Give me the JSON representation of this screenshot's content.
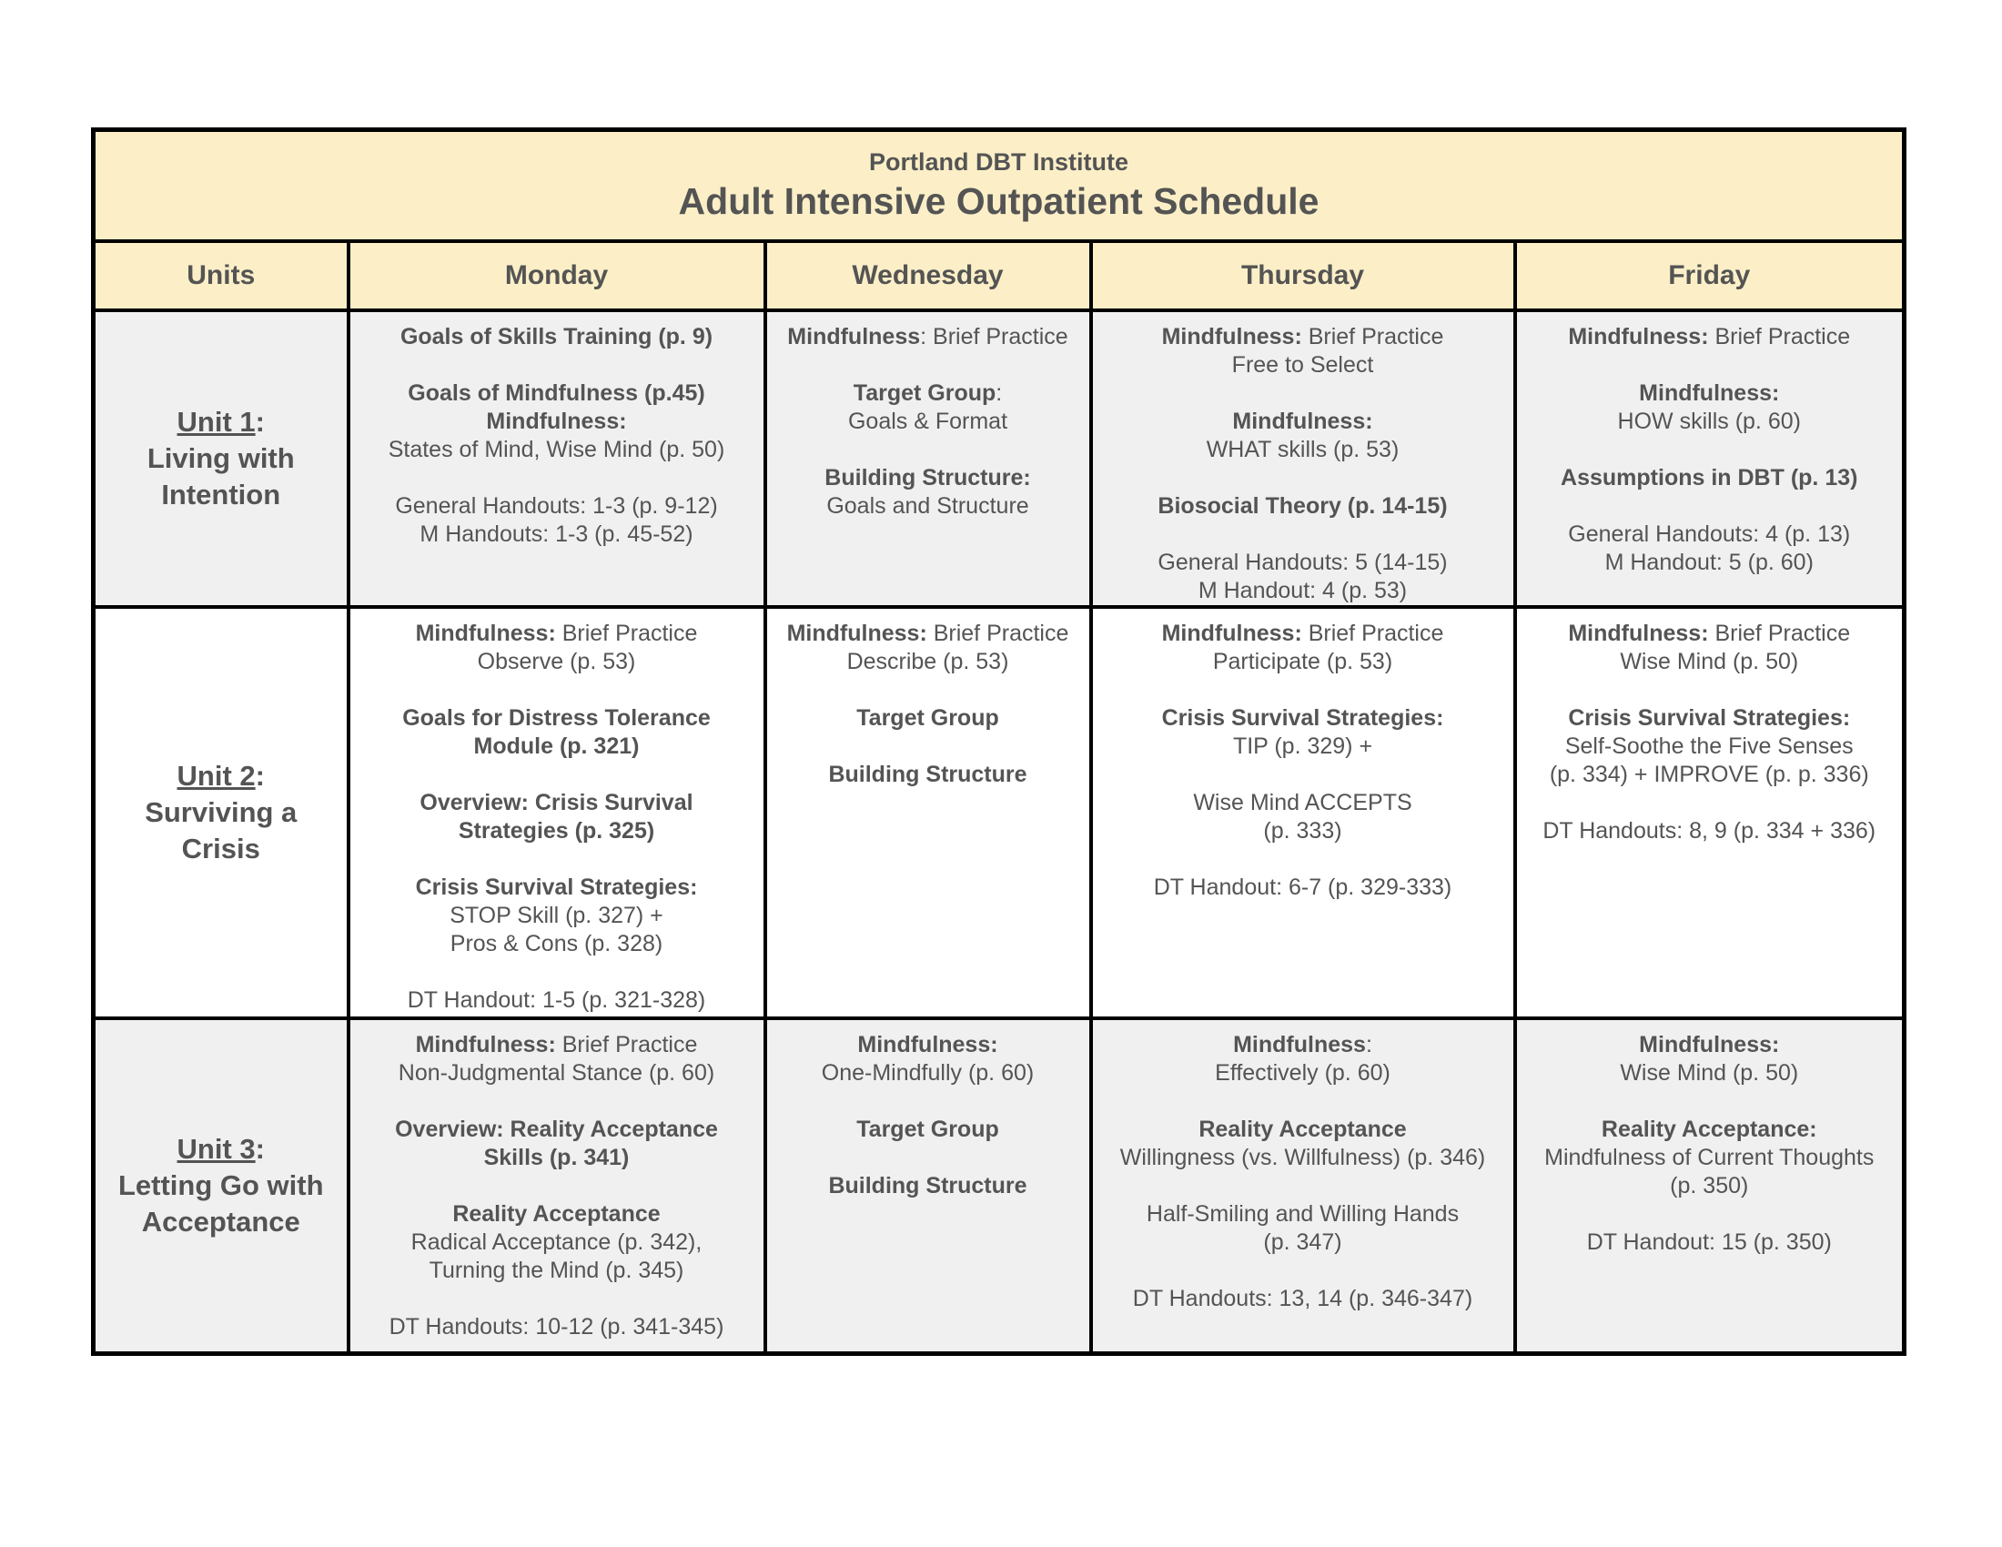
{
  "colors": {
    "header_bg": "#fcefc7",
    "shaded_row_bg": "#f0f0f0",
    "row_bg": "#ffffff",
    "border": "#000000",
    "text": "#545454"
  },
  "title": {
    "institute": "Portland DBT Institute",
    "schedule": "Adult Intensive Outpatient Schedule"
  },
  "columns": [
    "Units",
    "Monday",
    "Wednesday",
    "Thursday",
    "Friday"
  ],
  "rows": [
    {
      "unit": {
        "label": "Unit 1",
        "suffix": ":",
        "name": "Living with Intention",
        "name_lines": [
          "Living with",
          "Intention"
        ]
      },
      "days": [
        {
          "day": "Monday",
          "blocks": [
            [
              [
                {
                  "t": "Goals of Skills Training (p. 9)",
                  "b": true
                }
              ]
            ],
            [
              [
                {
                  "t": "Goals of Mindfulness (p.45)",
                  "b": true
                }
              ],
              [
                {
                  "t": "Mindfulness:",
                  "b": true
                }
              ],
              [
                {
                  "t": "States of Mind, Wise Mind (p. 50)",
                  "b": false
                }
              ]
            ],
            [
              [
                {
                  "t": "General Handouts: 1-3 (p. 9-12)",
                  "b": false
                }
              ],
              [
                {
                  "t": "M Handouts: 1-3 (p. 45-52)",
                  "b": false
                }
              ]
            ]
          ]
        },
        {
          "day": "Wednesday",
          "blocks": [
            [
              [
                {
                  "t": "Mindfulness",
                  "b": true
                },
                {
                  "t": ": Brief Practice",
                  "b": false
                }
              ]
            ],
            [
              [
                {
                  "t": "Target Group",
                  "b": true
                },
                {
                  "t": ":",
                  "b": false
                }
              ],
              [
                {
                  "t": "Goals & Format",
                  "b": false
                }
              ]
            ],
            [
              [
                {
                  "t": "Building Structure:",
                  "b": true
                }
              ],
              [
                {
                  "t": "Goals and Structure",
                  "b": false
                }
              ]
            ]
          ]
        },
        {
          "day": "Thursday",
          "blocks": [
            [
              [
                {
                  "t": "Mindfulness:",
                  "b": true
                },
                {
                  "t": " Brief Practice",
                  "b": false
                }
              ],
              [
                {
                  "t": "Free to Select",
                  "b": false
                }
              ]
            ],
            [
              [
                {
                  "t": "Mindfulness:",
                  "b": true
                }
              ],
              [
                {
                  "t": "WHAT skills (p. 53)",
                  "b": false
                }
              ]
            ],
            [
              [
                {
                  "t": "Biosocial Theory (p. 14-15)",
                  "b": true
                }
              ]
            ],
            [
              [
                {
                  "t": "General Handouts: 5 (14-15)",
                  "b": false
                }
              ],
              [
                {
                  "t": "M Handout: 4 (p. 53)",
                  "b": false
                }
              ]
            ]
          ]
        },
        {
          "day": "Friday",
          "blocks": [
            [
              [
                {
                  "t": "Mindfulness:",
                  "b": true
                },
                {
                  "t": " Brief Practice",
                  "b": false
                }
              ]
            ],
            [
              [
                {
                  "t": "Mindfulness:",
                  "b": true
                }
              ],
              [
                {
                  "t": "HOW skills (p. 60)",
                  "b": false
                }
              ]
            ],
            [
              [
                {
                  "t": "Assumptions in DBT (p. 13)",
                  "b": true
                }
              ]
            ],
            [
              [
                {
                  "t": "General Handouts: 4 (p. 13)",
                  "b": false
                }
              ],
              [
                {
                  "t": "M Handout: 5 (p. 60)",
                  "b": false
                }
              ]
            ]
          ]
        }
      ]
    },
    {
      "unit": {
        "label": "Unit 2",
        "suffix": ":",
        "name": "Surviving a Crisis",
        "name_lines": [
          "Surviving a",
          "Crisis"
        ]
      },
      "days": [
        {
          "day": "Monday",
          "blocks": [
            [
              [
                {
                  "t": "Mindfulness:",
                  "b": true
                },
                {
                  "t": " Brief Practice",
                  "b": false
                }
              ],
              [
                {
                  "t": "Observe (p. 53)",
                  "b": false
                }
              ]
            ],
            [
              [
                {
                  "t": "Goals for Distress Tolerance",
                  "b": true
                }
              ],
              [
                {
                  "t": "Module (p. 321)",
                  "b": true
                }
              ]
            ],
            [
              [
                {
                  "t": "Overview: Crisis Survival",
                  "b": true
                }
              ],
              [
                {
                  "t": "Strategies (p. 325)",
                  "b": true
                }
              ]
            ],
            [
              [
                {
                  "t": "Crisis Survival Strategies:",
                  "b": true
                }
              ],
              [
                {
                  "t": "STOP Skill (p. 327) +",
                  "b": false
                }
              ],
              [
                {
                  "t": "Pros & Cons (p. 328)",
                  "b": false
                }
              ]
            ],
            [
              [
                {
                  "t": "DT Handout: 1-5 (p. 321-328)",
                  "b": false
                }
              ]
            ]
          ]
        },
        {
          "day": "Wednesday",
          "blocks": [
            [
              [
                {
                  "t": "Mindfulness:",
                  "b": true
                },
                {
                  "t": " Brief Practice",
                  "b": false
                }
              ],
              [
                {
                  "t": "Describe (p. 53)",
                  "b": false
                }
              ]
            ],
            [
              [
                {
                  "t": "Target Group",
                  "b": true
                }
              ]
            ],
            [
              [
                {
                  "t": "Building Structure",
                  "b": true
                }
              ]
            ]
          ]
        },
        {
          "day": "Thursday",
          "blocks": [
            [
              [
                {
                  "t": "Mindfulness:",
                  "b": true
                },
                {
                  "t": " Brief Practice",
                  "b": false
                }
              ],
              [
                {
                  "t": "Participate (p. 53)",
                  "b": false
                }
              ]
            ],
            [
              [
                {
                  "t": "Crisis Survival Strategies:",
                  "b": true
                }
              ],
              [
                {
                  "t": "TIP (p. 329) +",
                  "b": false
                }
              ]
            ],
            [
              [
                {
                  "t": "Wise Mind ACCEPTS",
                  "b": false
                }
              ],
              [
                {
                  "t": "(p. 333)",
                  "b": false
                }
              ]
            ],
            [
              [
                {
                  "t": "DT Handout: 6-7 (p. 329-333)",
                  "b": false
                }
              ]
            ]
          ]
        },
        {
          "day": "Friday",
          "blocks": [
            [
              [
                {
                  "t": "Mindfulness:",
                  "b": true
                },
                {
                  "t": " Brief Practice",
                  "b": false
                }
              ],
              [
                {
                  "t": "Wise Mind (p. 50)",
                  "b": false
                }
              ]
            ],
            [
              [
                {
                  "t": "Crisis Survival Strategies:",
                  "b": true
                }
              ],
              [
                {
                  "t": "Self-Soothe the Five Senses",
                  "b": false
                }
              ],
              [
                {
                  "t": "(p. 334) + IMPROVE (p. p. 336)",
                  "b": false
                }
              ]
            ],
            [
              [
                {
                  "t": "DT Handouts: 8, 9 (p. 334 + 336)",
                  "b": false
                }
              ]
            ]
          ]
        }
      ]
    },
    {
      "unit": {
        "label": "Unit 3",
        "suffix": ":",
        "name": "Letting Go with Acceptance",
        "name_lines": [
          "Letting Go with",
          "Acceptance"
        ]
      },
      "days": [
        {
          "day": "Monday",
          "blocks": [
            [
              [
                {
                  "t": "Mindfulness:",
                  "b": true
                },
                {
                  "t": " Brief Practice",
                  "b": false
                }
              ],
              [
                {
                  "t": "Non-Judgmental Stance (p. 60)",
                  "b": false
                }
              ]
            ],
            [
              [
                {
                  "t": "Overview: Reality Acceptance",
                  "b": true
                }
              ],
              [
                {
                  "t": "Skills (p. 341)",
                  "b": true
                }
              ]
            ],
            [
              [
                {
                  "t": "Reality Acceptance",
                  "b": true
                }
              ],
              [
                {
                  "t": "Radical Acceptance (p. 342),",
                  "b": false
                }
              ],
              [
                {
                  "t": "Turning the Mind (p. 345)",
                  "b": false
                }
              ]
            ],
            [
              [
                {
                  "t": "DT Handouts: 10-12 (p. 341-345)",
                  "b": false
                }
              ]
            ]
          ]
        },
        {
          "day": "Wednesday",
          "blocks": [
            [
              [
                {
                  "t": "Mindfulness:",
                  "b": true
                }
              ],
              [
                {
                  "t": "One-Mindfully (p. 60)",
                  "b": false
                }
              ]
            ],
            [
              [
                {
                  "t": "Target Group",
                  "b": true
                }
              ]
            ],
            [
              [
                {
                  "t": "Building Structure",
                  "b": true
                }
              ]
            ]
          ]
        },
        {
          "day": "Thursday",
          "blocks": [
            [
              [
                {
                  "t": "Mindfulness",
                  "b": true
                },
                {
                  "t": ":",
                  "b": false
                }
              ],
              [
                {
                  "t": "Effectively (p. 60)",
                  "b": false
                }
              ]
            ],
            [
              [
                {
                  "t": "Reality Acceptance",
                  "b": true
                }
              ],
              [
                {
                  "t": "Willingness (vs. Willfulness) (p. 346)",
                  "b": false
                }
              ]
            ],
            [
              [
                {
                  "t": "Half-Smiling and Willing Hands",
                  "b": false
                }
              ],
              [
                {
                  "t": "(p. 347)",
                  "b": false
                }
              ]
            ],
            [
              [
                {
                  "t": "DT Handouts: 13, 14 (p. 346-347)",
                  "b": false
                }
              ]
            ]
          ]
        },
        {
          "day": "Friday",
          "blocks": [
            [
              [
                {
                  "t": "Mindfulness:",
                  "b": true
                }
              ],
              [
                {
                  "t": "Wise Mind (p. 50)",
                  "b": false
                }
              ]
            ],
            [
              [
                {
                  "t": "Reality Acceptance:",
                  "b": true
                }
              ],
              [
                {
                  "t": "Mindfulness of Current Thoughts",
                  "b": false
                }
              ],
              [
                {
                  "t": "(p. 350)",
                  "b": false
                }
              ]
            ],
            [
              [
                {
                  "t": "DT Handout: 15 (p. 350)",
                  "b": false
                }
              ]
            ]
          ]
        }
      ]
    }
  ]
}
